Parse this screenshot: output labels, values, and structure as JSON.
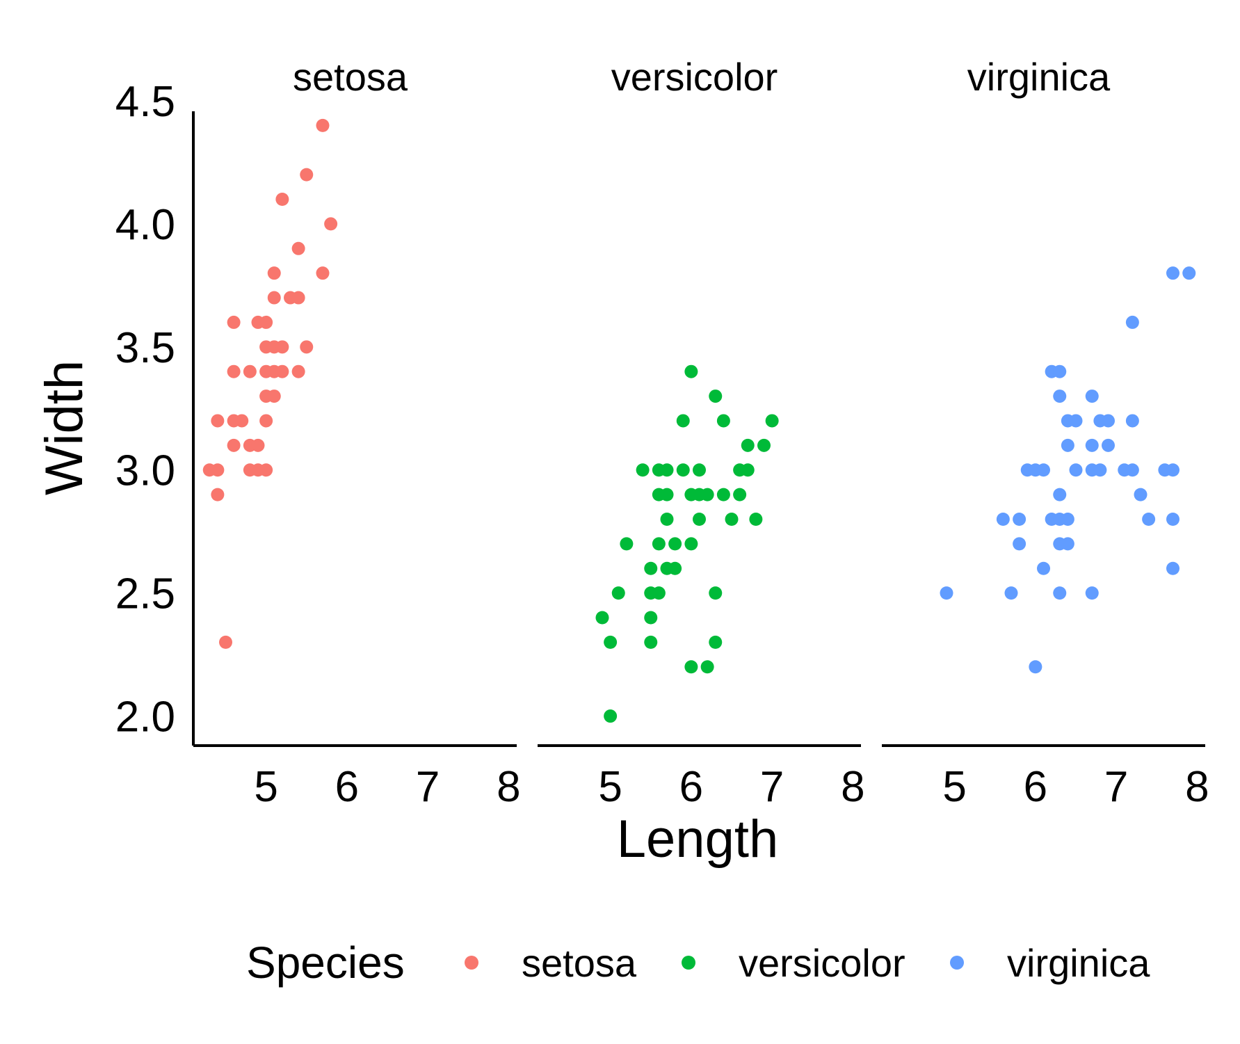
{
  "chart_data": {
    "type": "scatter",
    "xlabel": "Length",
    "ylabel": "Width",
    "xlim": [
      4.1,
      8.1
    ],
    "ylim": [
      1.88,
      4.5
    ],
    "x_ticks": [
      "5",
      "6",
      "7",
      "8"
    ],
    "y_ticks": [
      "2.0",
      "2.5",
      "3.0",
      "3.5",
      "4.0",
      "4.5"
    ],
    "facets": [
      "setosa",
      "versicolor",
      "virginica"
    ],
    "legend": {
      "title": "Species",
      "position": "bottom"
    },
    "series": [
      {
        "name": "setosa",
        "color": "#F8766D",
        "points": [
          [
            5.7,
            4.4
          ],
          [
            5.5,
            4.2
          ],
          [
            5.2,
            4.1
          ],
          [
            5.8,
            4.0
          ],
          [
            5.4,
            3.9
          ],
          [
            5.1,
            3.8
          ],
          [
            5.7,
            3.8
          ],
          [
            5.1,
            3.7
          ],
          [
            5.3,
            3.7
          ],
          [
            5.4,
            3.7
          ],
          [
            4.6,
            3.6
          ],
          [
            5.0,
            3.6
          ],
          [
            4.9,
            3.6
          ],
          [
            5.0,
            3.5
          ],
          [
            5.1,
            3.5
          ],
          [
            5.2,
            3.5
          ],
          [
            5.5,
            3.5
          ],
          [
            4.6,
            3.4
          ],
          [
            4.8,
            3.4
          ],
          [
            5.0,
            3.4
          ],
          [
            5.1,
            3.4
          ],
          [
            5.2,
            3.4
          ],
          [
            5.4,
            3.4
          ],
          [
            5.0,
            3.3
          ],
          [
            5.1,
            3.3
          ],
          [
            4.4,
            3.2
          ],
          [
            4.6,
            3.2
          ],
          [
            4.7,
            3.2
          ],
          [
            5.0,
            3.2
          ],
          [
            4.6,
            3.1
          ],
          [
            4.8,
            3.1
          ],
          [
            4.9,
            3.1
          ],
          [
            4.3,
            3.0
          ],
          [
            4.4,
            3.0
          ],
          [
            4.8,
            3.0
          ],
          [
            4.9,
            3.0
          ],
          [
            5.0,
            3.0
          ],
          [
            4.4,
            2.9
          ],
          [
            4.5,
            2.3
          ]
        ]
      },
      {
        "name": "versicolor",
        "color": "#00BA38",
        "points": [
          [
            6.0,
            3.4
          ],
          [
            6.3,
            3.3
          ],
          [
            5.9,
            3.2
          ],
          [
            6.4,
            3.2
          ],
          [
            7.0,
            3.2
          ],
          [
            6.7,
            3.1
          ],
          [
            6.9,
            3.1
          ],
          [
            5.4,
            3.0
          ],
          [
            5.6,
            3.0
          ],
          [
            5.7,
            3.0
          ],
          [
            5.9,
            3.0
          ],
          [
            6.1,
            3.0
          ],
          [
            6.6,
            3.0
          ],
          [
            6.7,
            3.0
          ],
          [
            5.6,
            2.9
          ],
          [
            5.7,
            2.9
          ],
          [
            6.0,
            2.9
          ],
          [
            6.1,
            2.9
          ],
          [
            6.2,
            2.9
          ],
          [
            6.4,
            2.9
          ],
          [
            6.6,
            2.9
          ],
          [
            5.7,
            2.8
          ],
          [
            6.1,
            2.8
          ],
          [
            6.5,
            2.8
          ],
          [
            6.8,
            2.8
          ],
          [
            5.2,
            2.7
          ],
          [
            5.6,
            2.7
          ],
          [
            5.8,
            2.7
          ],
          [
            6.0,
            2.7
          ],
          [
            5.5,
            2.6
          ],
          [
            5.7,
            2.6
          ],
          [
            5.8,
            2.6
          ],
          [
            5.1,
            2.5
          ],
          [
            5.5,
            2.5
          ],
          [
            5.6,
            2.5
          ],
          [
            6.3,
            2.5
          ],
          [
            4.9,
            2.4
          ],
          [
            5.5,
            2.4
          ],
          [
            5.0,
            2.3
          ],
          [
            5.5,
            2.3
          ],
          [
            6.3,
            2.3
          ],
          [
            6.0,
            2.2
          ],
          [
            6.2,
            2.2
          ],
          [
            5.0,
            2.0
          ]
        ]
      },
      {
        "name": "virginica",
        "color": "#619CFF",
        "points": [
          [
            7.7,
            3.8
          ],
          [
            7.9,
            3.8
          ],
          [
            7.2,
            3.6
          ],
          [
            6.2,
            3.4
          ],
          [
            6.3,
            3.4
          ],
          [
            6.3,
            3.3
          ],
          [
            6.7,
            3.3
          ],
          [
            6.4,
            3.2
          ],
          [
            6.5,
            3.2
          ],
          [
            6.8,
            3.2
          ],
          [
            6.9,
            3.2
          ],
          [
            7.2,
            3.2
          ],
          [
            6.4,
            3.1
          ],
          [
            6.7,
            3.1
          ],
          [
            6.9,
            3.1
          ],
          [
            5.9,
            3.0
          ],
          [
            6.0,
            3.0
          ],
          [
            6.1,
            3.0
          ],
          [
            6.5,
            3.0
          ],
          [
            6.7,
            3.0
          ],
          [
            6.8,
            3.0
          ],
          [
            7.1,
            3.0
          ],
          [
            7.2,
            3.0
          ],
          [
            7.6,
            3.0
          ],
          [
            7.7,
            3.0
          ],
          [
            6.3,
            2.9
          ],
          [
            7.3,
            2.9
          ],
          [
            5.6,
            2.8
          ],
          [
            5.8,
            2.8
          ],
          [
            6.2,
            2.8
          ],
          [
            6.3,
            2.8
          ],
          [
            6.4,
            2.8
          ],
          [
            7.4,
            2.8
          ],
          [
            7.7,
            2.8
          ],
          [
            5.8,
            2.7
          ],
          [
            6.3,
            2.7
          ],
          [
            6.4,
            2.7
          ],
          [
            6.1,
            2.6
          ],
          [
            7.7,
            2.6
          ],
          [
            4.9,
            2.5
          ],
          [
            5.7,
            2.5
          ],
          [
            6.3,
            2.5
          ],
          [
            6.7,
            2.5
          ],
          [
            6.0,
            2.2
          ]
        ]
      }
    ]
  }
}
